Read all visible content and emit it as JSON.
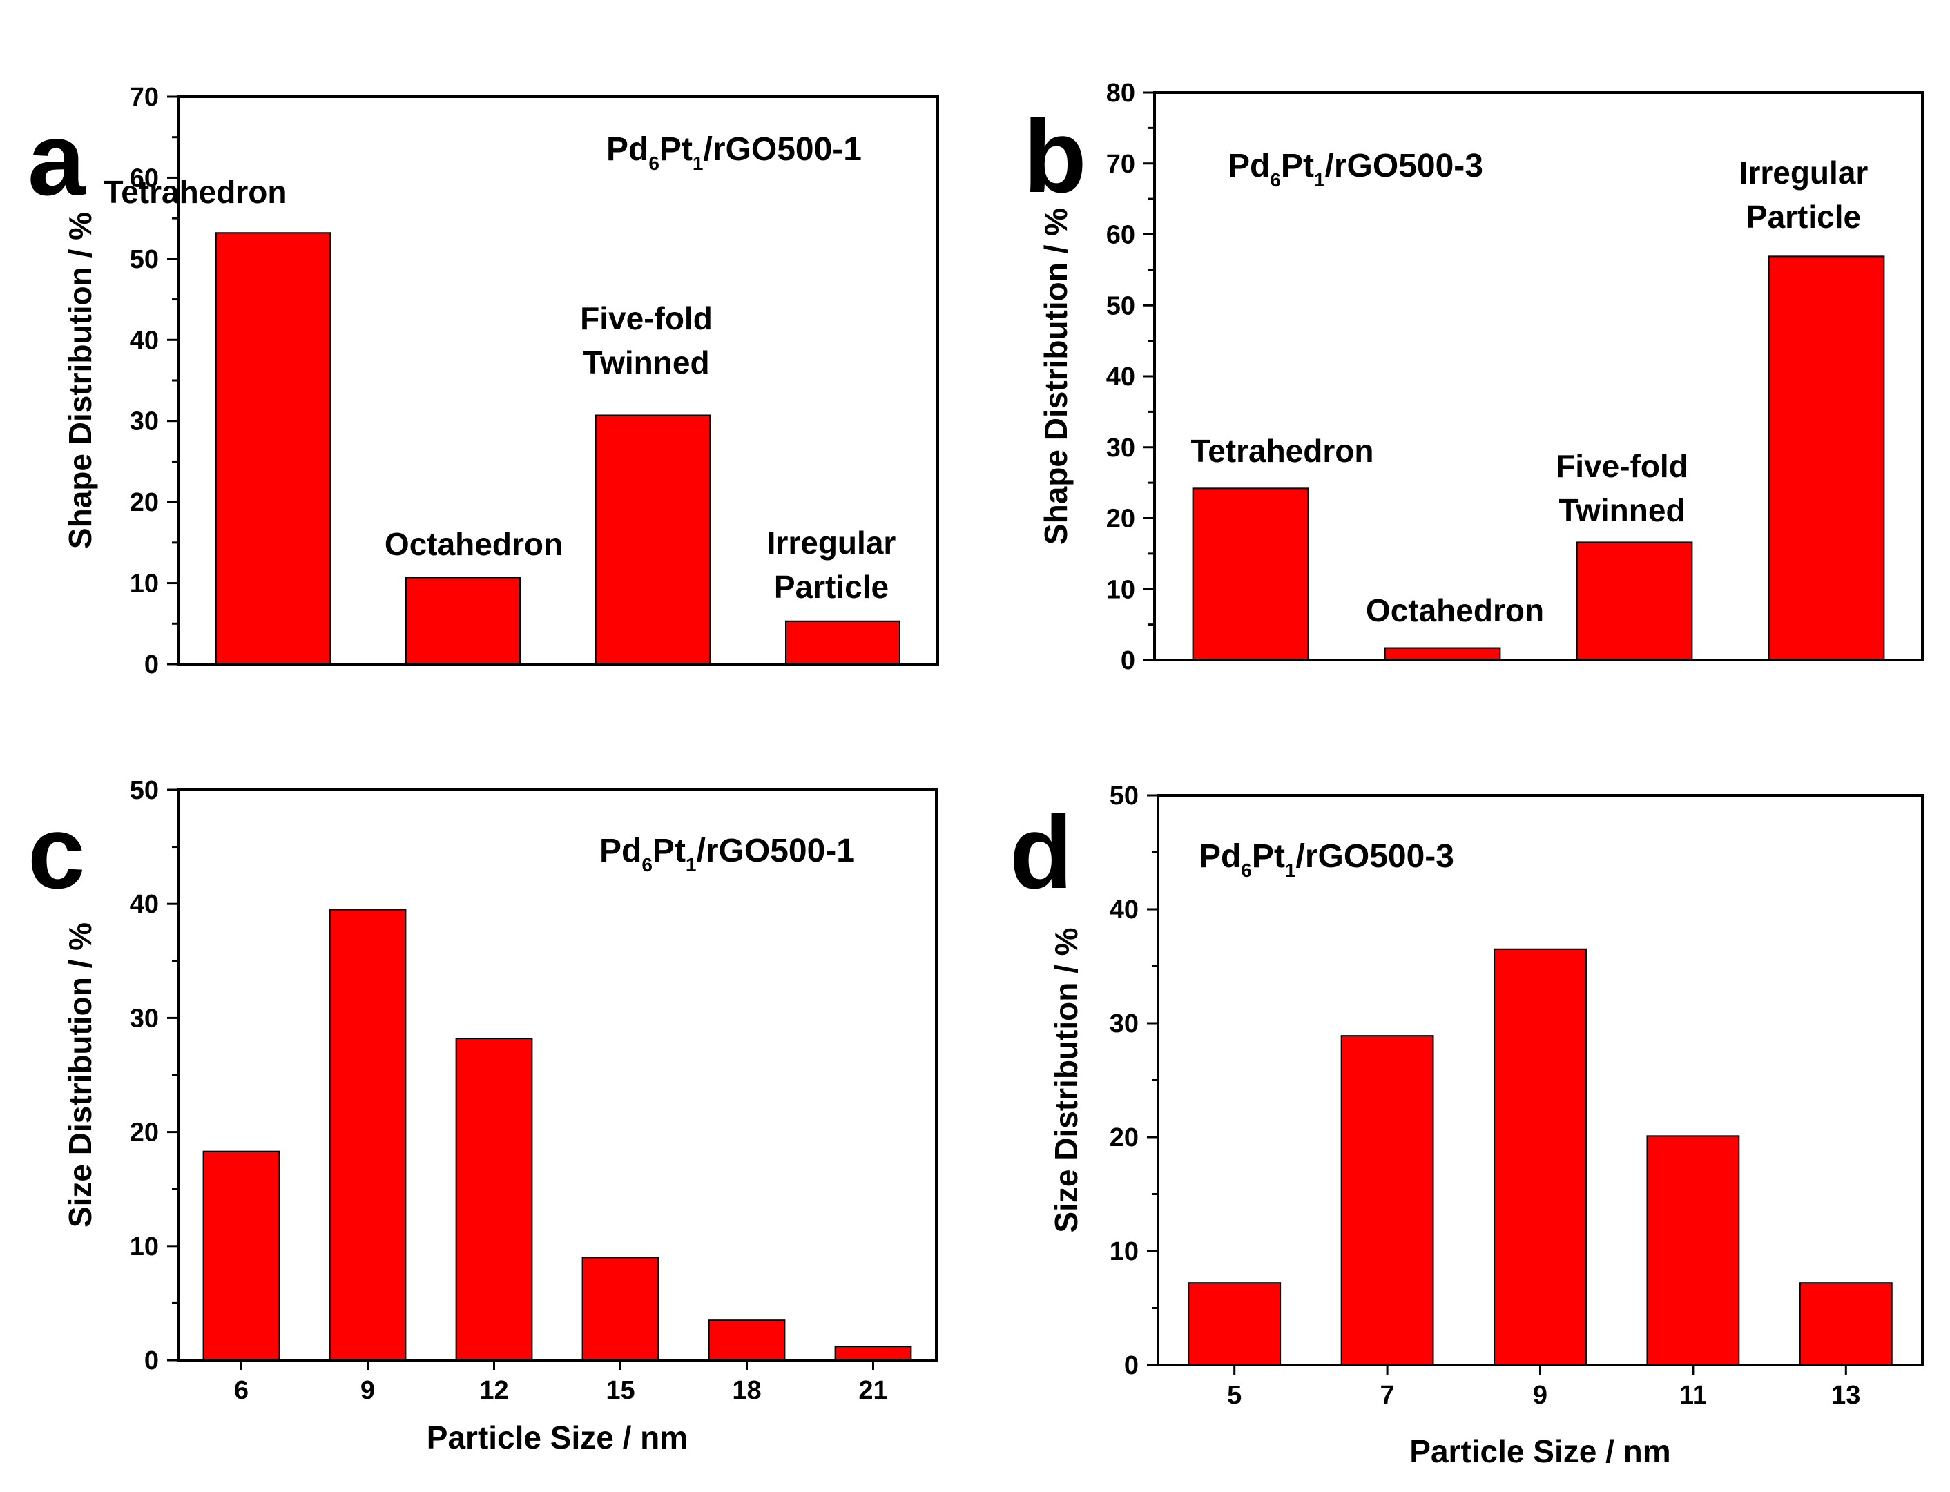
{
  "figure_name": "Shape and size distributions",
  "chart_data": [
    {
      "id": "a",
      "letter": "a",
      "type": "bar",
      "title_parts": [
        "Pd",
        "6",
        "Pt",
        "1",
        "/rGO500-1"
      ],
      "ylabel": "Shape Distribution / %",
      "xlabel": "",
      "ylim": [
        0,
        70
      ],
      "yticks": [
        0,
        10,
        20,
        30,
        40,
        50,
        60,
        70
      ],
      "ytick_labels": [
        "0",
        "10",
        "20",
        "30",
        "40",
        "50",
        "60",
        "70"
      ],
      "categories": [
        "Tetrahedron",
        "Octahedron",
        "Five-fold Twinned",
        "Irregular Particle"
      ],
      "values": [
        53.2,
        10.7,
        30.7,
        5.3
      ],
      "bar_labels": [
        [
          "Tetrahedron"
        ],
        [
          "Octahedron"
        ],
        [
          "Five-fold",
          "Twinned"
        ],
        [
          "Irregular",
          "Particle"
        ]
      ],
      "show_xticks": false,
      "bar_color": "#ff0000"
    },
    {
      "id": "b",
      "letter": "b",
      "type": "bar",
      "title_parts": [
        "Pd",
        "6",
        "Pt",
        "1",
        "/rGO500-3"
      ],
      "ylabel": "Shape Distribution / %",
      "xlabel": "",
      "ylim": [
        0,
        80
      ],
      "yticks": [
        0,
        10,
        20,
        30,
        40,
        50,
        60,
        70,
        80
      ],
      "ytick_labels": [
        "0",
        "10",
        "20",
        "30",
        "40",
        "50",
        "60",
        "70",
        "80"
      ],
      "categories": [
        "Tetrahedron",
        "Octahedron",
        "Five-fold Twinned",
        "Irregular Particle"
      ],
      "values": [
        24.2,
        1.7,
        16.6,
        56.9
      ],
      "bar_labels": [
        [
          "Tetrahedron"
        ],
        [
          "Octahedron"
        ],
        [
          "Five-fold",
          "Twinned"
        ],
        [
          "Irregular",
          "Particle"
        ]
      ],
      "show_xticks": false,
      "bar_color": "#ff0000"
    },
    {
      "id": "c",
      "letter": "c",
      "type": "bar",
      "title_parts": [
        "Pd",
        "6",
        "Pt",
        "1",
        "/rGO500-1"
      ],
      "ylabel": "Size Distribution / %",
      "xlabel": "Particle Size / nm",
      "ylim": [
        0,
        50
      ],
      "yticks": [
        0,
        10,
        20,
        30,
        40,
        50
      ],
      "ytick_labels": [
        "0",
        "10",
        "20",
        "30",
        "40",
        "50"
      ],
      "categories": [
        "6",
        "9",
        "12",
        "15",
        "18",
        "21"
      ],
      "values": [
        18.3,
        39.5,
        28.2,
        9.0,
        3.5,
        1.2
      ],
      "bar_labels": [],
      "show_xticks": true,
      "bar_color": "#ff0000"
    },
    {
      "id": "d",
      "letter": "d",
      "type": "bar",
      "title_parts": [
        "Pd",
        "6",
        "Pt",
        "1",
        "/rGO500-3"
      ],
      "ylabel": "Size Distribution / %",
      "xlabel": "Particle Size / nm",
      "ylim": [
        0,
        50
      ],
      "yticks": [
        0,
        10,
        20,
        30,
        40,
        50
      ],
      "ytick_labels": [
        "0",
        "10",
        "20",
        "30",
        "40",
        "50"
      ],
      "categories": [
        "5",
        "7",
        "9",
        "11",
        "13"
      ],
      "values": [
        7.2,
        28.9,
        36.5,
        20.1,
        7.2
      ],
      "bar_labels": [],
      "show_xticks": true,
      "bar_color": "#ff0000"
    }
  ]
}
